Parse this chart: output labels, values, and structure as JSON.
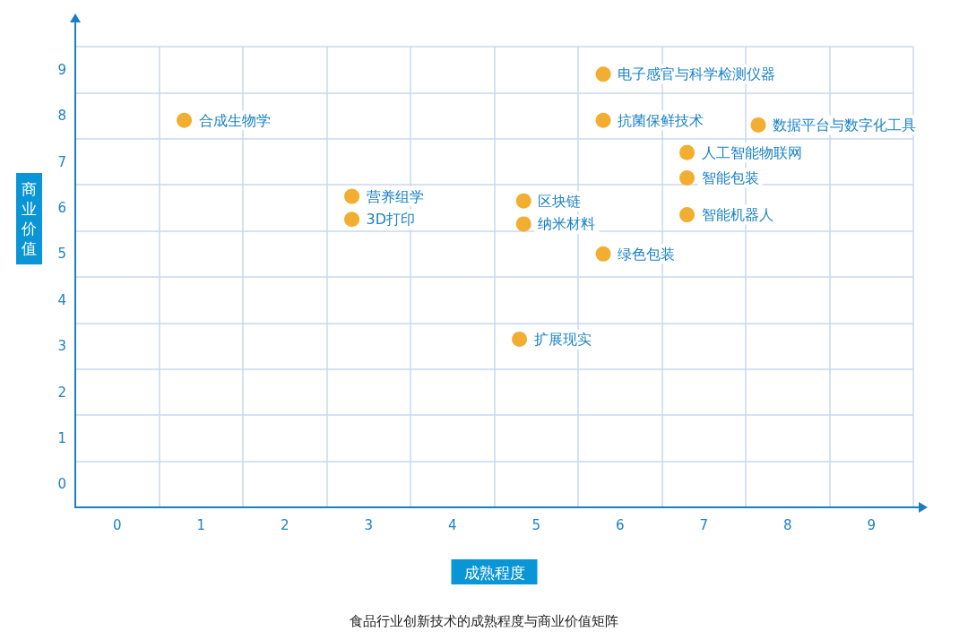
{
  "chart_data": {
    "type": "scatter",
    "title": "食品行业创新技术的成熟程度与商业价值矩阵",
    "xlabel": "成熟程度",
    "ylabel": "商业价值",
    "series": [
      {
        "color": "#f2ae30",
        "x": [
          0.8,
          5.8,
          5.8,
          7.65,
          6.8,
          6.8,
          6.8,
          2.8,
          2.8,
          4.85,
          4.85,
          5.8,
          4.8
        ],
        "values": [
          7.9,
          8.9,
          7.9,
          7.8,
          7.2,
          6.65,
          5.85,
          6.25,
          5.75,
          6.15,
          5.65,
          5.0,
          3.15
        ]
      }
    ],
    "annotations": [
      {
        "text": "合成生物学",
        "x": 0.8,
        "y": 7.9
      },
      {
        "text": "电子感官与科学检测仪器",
        "x": 5.8,
        "y": 8.9
      },
      {
        "text": "抗菌保鲜技术",
        "x": 5.8,
        "y": 7.9
      },
      {
        "text": "数据平台与数字化工具",
        "x": 7.65,
        "y": 7.8
      },
      {
        "text": "人工智能物联网",
        "x": 6.8,
        "y": 7.2
      },
      {
        "text": "智能包装",
        "x": 6.8,
        "y": 6.65
      },
      {
        "text": "智能机器人",
        "x": 6.8,
        "y": 5.85
      },
      {
        "text": "营养组学",
        "x": 2.8,
        "y": 6.25
      },
      {
        "text": "3D打印",
        "x": 2.8,
        "y": 5.75
      },
      {
        "text": "区块链",
        "x": 4.85,
        "y": 6.15
      },
      {
        "text": "纳米材料",
        "x": 4.85,
        "y": 5.65
      },
      {
        "text": "绿色包装",
        "x": 5.8,
        "y": 5.0
      },
      {
        "text": "扩展现实",
        "x": 4.8,
        "y": 3.15
      }
    ],
    "xlim": [
      -0.5,
      9.5
    ],
    "ylim": [
      -0.5,
      9.5
    ],
    "xticks": [
      0,
      1,
      2,
      3,
      4,
      5,
      6,
      7,
      8,
      9
    ],
    "yticks": [
      0,
      1,
      2,
      3,
      4,
      5,
      6,
      7,
      8,
      9
    ],
    "grid": true,
    "marker": "circle"
  }
}
